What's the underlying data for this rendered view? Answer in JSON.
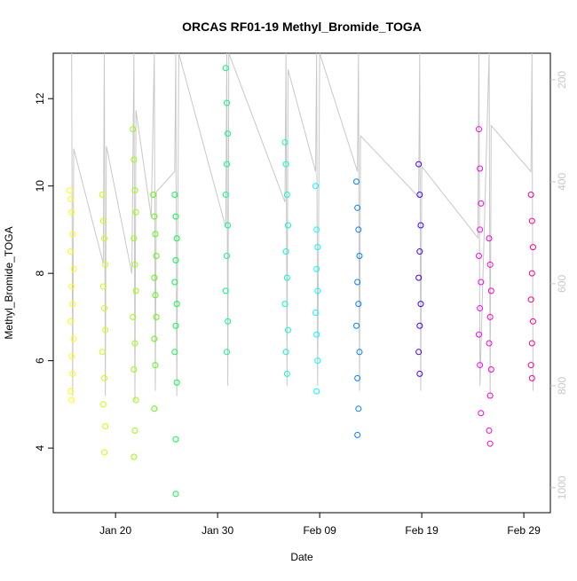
{
  "chart_data": {
    "type": "scatter",
    "title": "ORCAS RF01-19 Methyl_Bromide_TOGA",
    "x_label": "Date",
    "y_label": "Methyl_Bromide_TOGA",
    "xlim": [
      13.9,
      62.6
    ],
    "xticks": [
      {
        "value": 20,
        "label": "Jan 20"
      },
      {
        "value": 30,
        "label": "Jan 30"
      },
      {
        "value": 40,
        "label": "Feb 09"
      },
      {
        "value": 50,
        "label": "Feb 19"
      },
      {
        "value": 60,
        "label": "Feb 29"
      }
    ],
    "ylim": [
      2.52,
      13.04
    ],
    "yticks": [
      4,
      6,
      8,
      10,
      12
    ],
    "y2lim": [
      1049,
      148
    ],
    "y2ticks": [
      200,
      400,
      600,
      800,
      1000
    ],
    "y2_color": "#c8c8c8",
    "series": [
      {
        "color": "#FFFF00",
        "x": [
          15.5,
          15.6,
          15.7,
          15.8,
          15.6,
          15.9,
          15.7,
          15.8,
          15.6,
          15.9,
          15.7,
          15.8,
          15.6,
          15.7
        ],
        "values": [
          9.9,
          9.7,
          9.4,
          8.9,
          8.5,
          8.1,
          7.7,
          7.3,
          6.9,
          6.5,
          6.1,
          5.7,
          5.3,
          5.1
        ]
      },
      {
        "color": "#CCFF00",
        "x": [
          18.7,
          18.8,
          18.9,
          19.0,
          18.8,
          18.9,
          19.0,
          18.7,
          18.9,
          18.8,
          19.0,
          18.9
        ],
        "values": [
          9.8,
          9.2,
          8.8,
          8.2,
          7.7,
          7.2,
          6.7,
          6.2,
          5.6,
          5.0,
          4.5,
          3.9
        ]
      },
      {
        "color": "#99FF00",
        "x": [
          21.7,
          21.8,
          21.9,
          22.0,
          21.8,
          21.9,
          22.0,
          21.7,
          21.9,
          21.8,
          22.0,
          21.9,
          21.8
        ],
        "values": [
          11.3,
          10.6,
          9.9,
          9.4,
          8.8,
          8.2,
          7.6,
          7.0,
          6.4,
          5.8,
          5.1,
          4.4,
          3.8
        ]
      },
      {
        "color": "#55FF00",
        "x": [
          23.7,
          23.8,
          23.9,
          24.0,
          23.8,
          23.9,
          24.0,
          23.8,
          23.9,
          23.8
        ],
        "values": [
          9.8,
          9.3,
          8.9,
          8.4,
          7.9,
          7.5,
          7.0,
          6.5,
          5.9,
          4.9
        ]
      },
      {
        "color": "#00FF40",
        "x": [
          25.8,
          25.9,
          26.0,
          25.9,
          25.8,
          26.0,
          25.9,
          25.8,
          26.0,
          25.9,
          25.9
        ],
        "values": [
          9.8,
          9.3,
          8.8,
          8.3,
          7.8,
          7.3,
          6.8,
          6.2,
          5.5,
          4.2,
          2.95
        ]
      },
      {
        "color": "#00FF80",
        "x": [
          30.8,
          30.9,
          31.0,
          30.9,
          30.8,
          31.0,
          30.9,
          30.8,
          31.0,
          30.9
        ],
        "values": [
          12.7,
          11.9,
          11.2,
          10.5,
          9.8,
          9.1,
          8.4,
          7.6,
          6.9,
          6.2
        ]
      },
      {
        "color": "#00FFCC",
        "x": [
          36.6,
          36.7,
          36.8,
          36.9,
          36.7,
          36.8,
          36.6,
          36.9,
          36.7,
          36.8
        ],
        "values": [
          11.0,
          10.5,
          9.8,
          9.1,
          8.5,
          7.9,
          7.3,
          6.7,
          6.2,
          5.7
        ]
      },
      {
        "color": "#00FFFF",
        "x": [
          39.6,
          39.7,
          39.8,
          39.7,
          39.8,
          39.6,
          39.7,
          39.8,
          39.7
        ],
        "values": [
          10.0,
          9.0,
          8.6,
          8.1,
          7.6,
          7.1,
          6.6,
          6.0,
          5.3
        ]
      },
      {
        "color": "#0080FF",
        "x": [
          43.6,
          43.7,
          43.8,
          43.9,
          43.7,
          43.8,
          43.6,
          43.9,
          43.7,
          43.8,
          43.7
        ],
        "values": [
          10.1,
          9.5,
          9.0,
          8.4,
          7.8,
          7.3,
          6.8,
          6.2,
          5.6,
          4.9,
          4.3
        ]
      },
      {
        "color": "#4000FF",
        "x": [
          49.7,
          49.8,
          49.9,
          49.8,
          49.7,
          49.9,
          49.8,
          49.7,
          49.8
        ],
        "values": [
          10.5,
          9.8,
          9.1,
          8.5,
          7.9,
          7.3,
          6.8,
          6.2,
          5.7
        ]
      },
      {
        "color": "#FF00FF",
        "x": [
          55.6,
          55.7,
          55.8,
          55.7,
          55.6,
          55.8,
          55.7,
          55.6,
          55.7,
          55.8
        ],
        "values": [
          11.3,
          10.4,
          9.6,
          9.0,
          8.4,
          7.8,
          7.2,
          6.6,
          5.9,
          4.8
        ]
      },
      {
        "color": "#FF00CC",
        "x": [
          56.6,
          56.7,
          56.8,
          56.7,
          56.6,
          56.8,
          56.7,
          56.6,
          56.7
        ],
        "values": [
          8.8,
          8.2,
          7.6,
          7.0,
          6.4,
          5.8,
          5.2,
          4.4,
          4.1
        ]
      },
      {
        "color": "#FF0080",
        "x": [
          60.7,
          60.8,
          60.9,
          60.8,
          60.7,
          60.9,
          60.8,
          60.7,
          60.8
        ],
        "values": [
          9.8,
          9.2,
          8.6,
          8.0,
          7.4,
          6.9,
          6.4,
          5.9,
          5.6
        ]
      },
      {
        "type": "line",
        "axis": "y2",
        "color": "#c8c8c8",
        "x": [
          15.7,
          15.8,
          15.9,
          18.8,
          18.9,
          19.0,
          19.1,
          21.6,
          21.8,
          21.9,
          22.0,
          23.5,
          23.8,
          23.9,
          24.0,
          25.8,
          25.9,
          26.0,
          26.2,
          30.8,
          30.9,
          31.0,
          31.1,
          36.6,
          36.7,
          36.8,
          36.9,
          39.6,
          39.7,
          39.8,
          40.0,
          43.7,
          43.8,
          43.9,
          44.0,
          49.7,
          49.8,
          49.9,
          50.0,
          55.5,
          55.6,
          55.7,
          56.6,
          56.7,
          56.8,
          60.7,
          60.8,
          60.9
        ],
        "values": [
          148,
          820,
          335,
          560,
          148,
          820,
          330,
          580,
          148,
          830,
          260,
          470,
          148,
          810,
          420,
          380,
          148,
          820,
          148,
          490,
          148,
          800,
          148,
          440,
          148,
          800,
          180,
          380,
          148,
          800,
          148,
          380,
          148,
          810,
          310,
          430,
          148,
          810,
          370,
          510,
          148,
          800,
          148,
          820,
          290,
          380,
          148,
          810
        ]
      }
    ]
  }
}
